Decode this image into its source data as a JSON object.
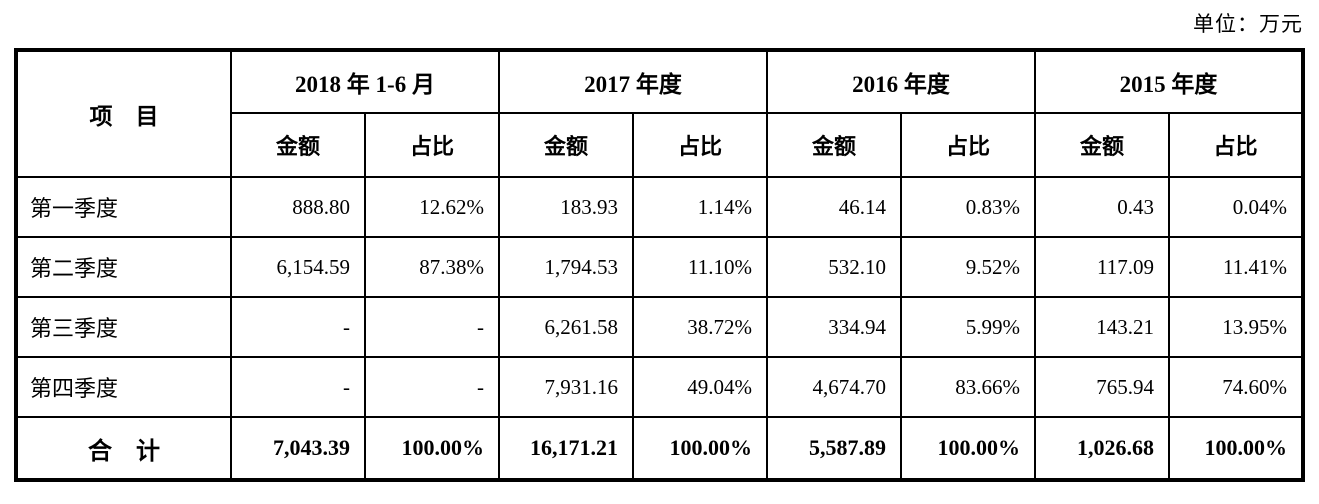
{
  "unit_label": "单位：万元",
  "table": {
    "item_header": "项　目",
    "column_groups": [
      {
        "label": "2018 年 1-6 月"
      },
      {
        "label": "2017 年度"
      },
      {
        "label": "2016 年度"
      },
      {
        "label": "2015 年度"
      }
    ],
    "sub_headers": {
      "amount": "金额",
      "ratio": "占比"
    },
    "rows": [
      {
        "label": "第一季度",
        "cells": [
          "888.80",
          "12.62%",
          "183.93",
          "1.14%",
          "46.14",
          "0.83%",
          "0.43",
          "0.04%"
        ]
      },
      {
        "label": "第二季度",
        "cells": [
          "6,154.59",
          "87.38%",
          "1,794.53",
          "11.10%",
          "532.10",
          "9.52%",
          "117.09",
          "11.41%"
        ]
      },
      {
        "label": "第三季度",
        "cells": [
          "-",
          "-",
          "6,261.58",
          "38.72%",
          "334.94",
          "5.99%",
          "143.21",
          "13.95%"
        ]
      },
      {
        "label": "第四季度",
        "cells": [
          "-",
          "-",
          "7,931.16",
          "49.04%",
          "4,674.70",
          "83.66%",
          "765.94",
          "74.60%"
        ]
      }
    ],
    "total_row": {
      "label": "合　计",
      "cells": [
        "7,043.39",
        "100.00%",
        "16,171.21",
        "100.00%",
        "5,587.89",
        "100.00%",
        "1,026.68",
        "100.00%"
      ]
    }
  }
}
